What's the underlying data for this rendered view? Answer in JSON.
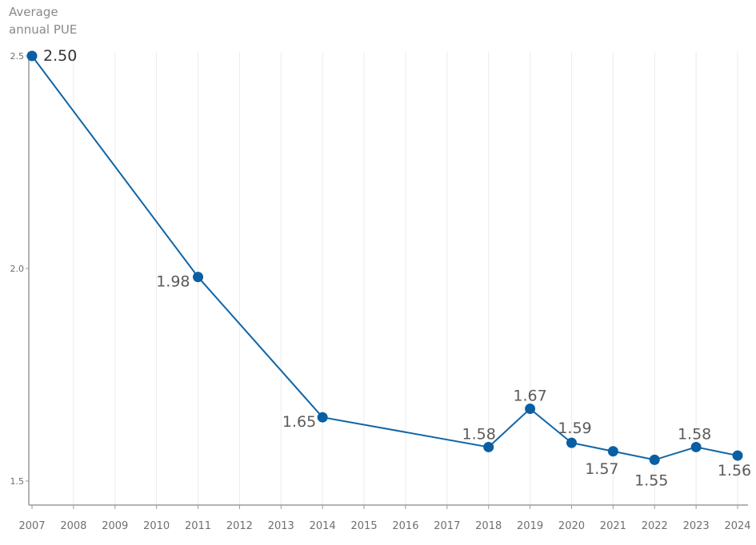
{
  "chart_data": {
    "type": "line",
    "ylabel_lines": [
      "Average",
      "annual PUE"
    ],
    "x": [
      2007,
      2008,
      2009,
      2010,
      2011,
      2012,
      2013,
      2014,
      2015,
      2016,
      2017,
      2018,
      2019,
      2020,
      2021,
      2022,
      2023,
      2024
    ],
    "x_tick_labels": [
      "2007",
      "2008",
      "2009",
      "2010",
      "2011",
      "2012",
      "2013",
      "2014",
      "2015",
      "2016",
      "2017",
      "2018",
      "2019",
      "2020",
      "2021",
      "2022",
      "2023",
      "2024"
    ],
    "y_ticks": [
      1.5,
      2.0,
      2.5
    ],
    "y_tick_labels": [
      "1.5",
      "2.0",
      "2.5"
    ],
    "ylim": [
      1.45,
      2.52
    ],
    "grid": "vertical",
    "series": [
      {
        "points": [
          {
            "x": 2007,
            "y": 2.5,
            "label": "2.50"
          },
          {
            "x": 2011,
            "y": 1.98,
            "label": "1.98"
          },
          {
            "x": 2014,
            "y": 1.65,
            "label": "1.65"
          },
          {
            "x": 2018,
            "y": 1.58,
            "label": "1.58"
          },
          {
            "x": 2019,
            "y": 1.67,
            "label": "1.67"
          },
          {
            "x": 2020,
            "y": 1.59,
            "label": "1.59"
          },
          {
            "x": 2021,
            "y": 1.57,
            "label": "1.57"
          },
          {
            "x": 2022,
            "y": 1.55,
            "label": "1.55"
          },
          {
            "x": 2023,
            "y": 1.58,
            "label": "1.58"
          },
          {
            "x": 2024,
            "y": 1.56,
            "label": "1.56"
          }
        ]
      }
    ],
    "colors": {
      "line": "#0f66a8",
      "point": "#0a5fa3",
      "grid": "#ebebeb",
      "axis": "#9a9a9a",
      "tick_text": "#6f6f6f",
      "data_label": "#5a5a5a"
    }
  }
}
